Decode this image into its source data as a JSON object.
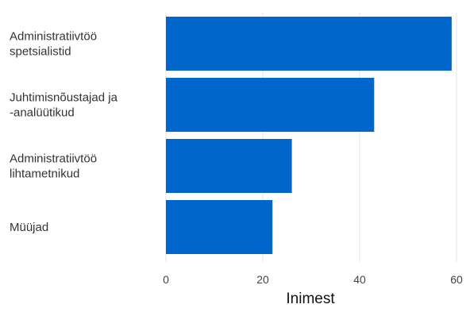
{
  "chart_data": {
    "type": "bar",
    "orientation": "horizontal",
    "categories": [
      [
        "Administratiivtöö",
        "spetsialistid"
      ],
      [
        "Juhtimisnõustajad ja",
        "-analüütikud"
      ],
      [
        "Administratiivtöö",
        "lihtametnikud"
      ],
      [
        "Müüjad"
      ]
    ],
    "values": [
      59,
      43,
      26,
      22
    ],
    "xlabel": "Inimest",
    "ylabel": "",
    "xlim": [
      0,
      60
    ],
    "xticks": [
      "0",
      "20",
      "40",
      "60"
    ],
    "grid": "vertical",
    "bar_color": "#0066cc",
    "legend": "none"
  }
}
